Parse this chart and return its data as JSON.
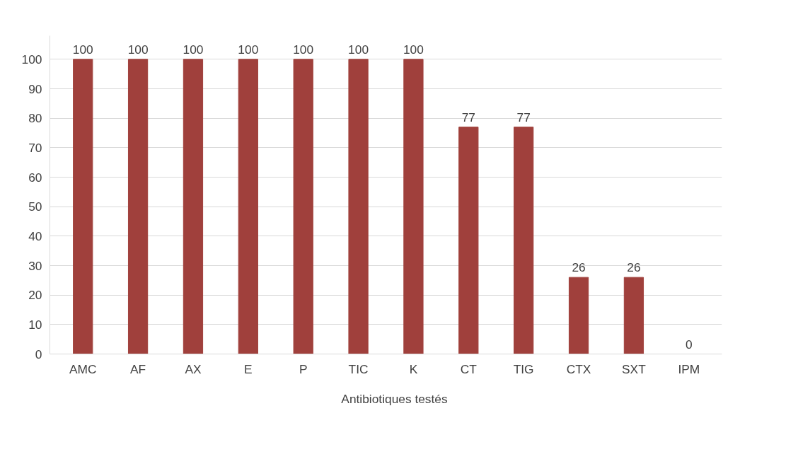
{
  "chart_data": {
    "type": "bar",
    "categories": [
      "AMC",
      "AF",
      "AX",
      "E",
      "P",
      "TIC",
      "K",
      "CT",
      "TIG",
      "CTX",
      "SXT",
      "IPM"
    ],
    "series": [
      {
        "name": "Antibiotiques testés",
        "color": "#a0403c",
        "values": [
          100,
          100,
          100,
          100,
          100,
          100,
          100,
          77,
          77,
          26,
          26,
          0
        ]
      }
    ],
    "ylim": [
      0,
      108
    ],
    "yticks": [
      0,
      10,
      20,
      30,
      40,
      50,
      60,
      70,
      80,
      90,
      100
    ],
    "grid": "y",
    "legend": "bottom",
    "data_labels": true
  }
}
